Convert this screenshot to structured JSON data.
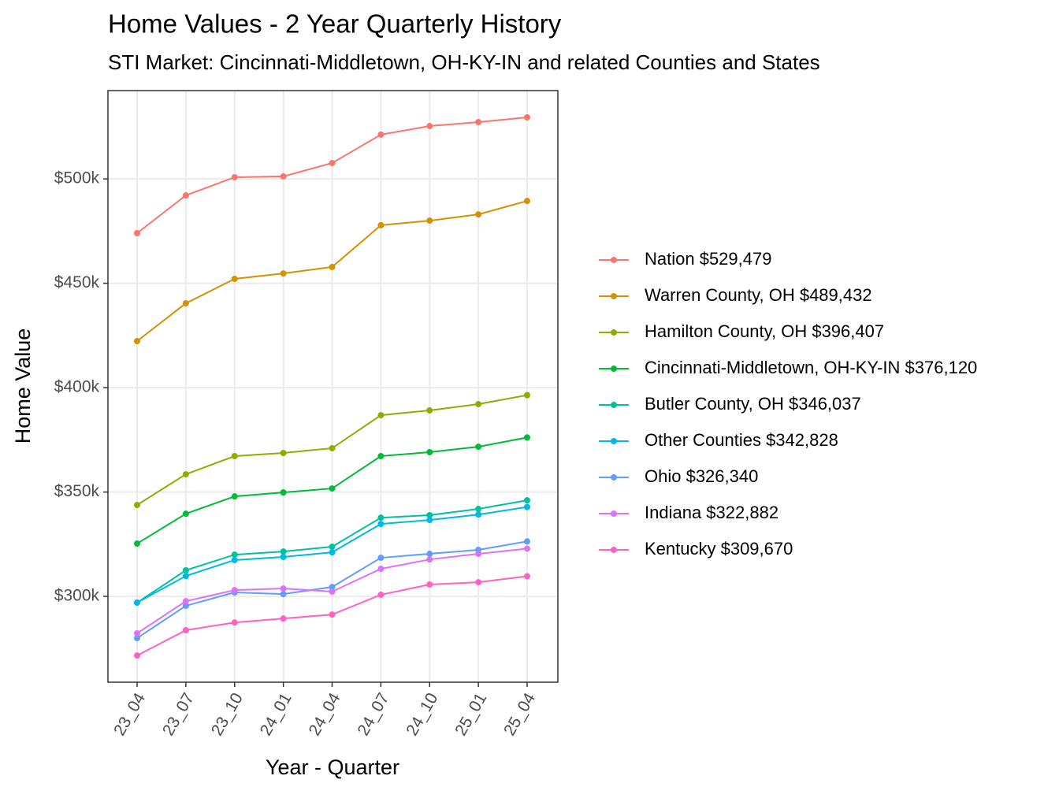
{
  "chart_data": {
    "type": "line",
    "title": "Home Values - 2 Year Quarterly History",
    "subtitle": "STI Market: Cincinnati-Middletown, OH-KY-IN and related Counties and States",
    "x_label": "Year - Quarter",
    "y_label": "Home Value",
    "categories": [
      "23_04",
      "23_07",
      "23_10",
      "24_01",
      "24_04",
      "24_07",
      "24_10",
      "25_01",
      "25_04"
    ],
    "ylim": [
      258900,
      542300
    ],
    "yticks": [
      {
        "value": 300000,
        "label": "$300k"
      },
      {
        "value": 350000,
        "label": "$350k"
      },
      {
        "value": 400000,
        "label": "$400k"
      },
      {
        "value": 450000,
        "label": "$450k"
      },
      {
        "value": 500000,
        "label": "$500k"
      }
    ],
    "grid": true,
    "legend": "right",
    "series": [
      {
        "name": "Nation $529,479",
        "color": "#F8766D",
        "values": [
          474000,
          492100,
          500800,
          501200,
          507600,
          521200,
          525300,
          527200,
          529479
        ]
      },
      {
        "name": "Warren County, OH $489,432",
        "color": "#D39200",
        "values": [
          422300,
          440400,
          452100,
          454700,
          457800,
          477800,
          480000,
          483000,
          489432
        ]
      },
      {
        "name": "Hamilton County, OH $396,407",
        "color": "#93AA00",
        "values": [
          343800,
          358500,
          367200,
          368700,
          371000,
          386800,
          389100,
          392100,
          396407
        ]
      },
      {
        "name": "Cincinnati-Middletown, OH-KY-IN $376,120",
        "color": "#00BA38",
        "values": [
          325300,
          339600,
          347900,
          349800,
          351700,
          367200,
          369100,
          371700,
          376120
        ]
      },
      {
        "name": "Butler County, OH $346,037",
        "color": "#00C19F",
        "values": [
          297000,
          312500,
          320000,
          321500,
          323800,
          337700,
          338900,
          341900,
          346037
        ]
      },
      {
        "name": "Other Counties $342,828",
        "color": "#00B9E3",
        "values": [
          297000,
          309800,
          317400,
          318900,
          321100,
          334700,
          336600,
          339200,
          342828
        ]
      },
      {
        "name": "Ohio $326,340",
        "color": "#619CFF",
        "values": [
          280000,
          295500,
          301900,
          301100,
          304500,
          318500,
          320400,
          322300,
          326340
        ]
      },
      {
        "name": "Indiana $322,882",
        "color": "#DB72FB",
        "values": [
          282300,
          297700,
          303000,
          303800,
          302300,
          313200,
          317700,
          320400,
          322882
        ]
      },
      {
        "name": "Kentucky $309,670",
        "color": "#FF61C3",
        "values": [
          271700,
          283800,
          287500,
          289400,
          291300,
          300800,
          305700,
          306800,
          309670
        ]
      }
    ]
  }
}
